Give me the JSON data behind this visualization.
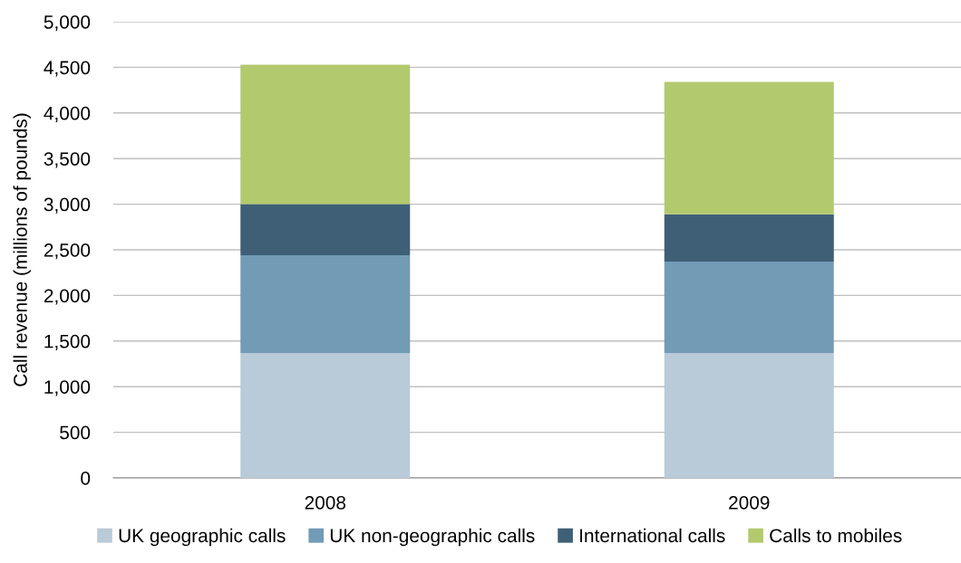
{
  "chart_data": {
    "type": "bar",
    "stacked": true,
    "ylabel": "Call revenue (millions of pounds)",
    "categories": [
      "2008",
      "2009"
    ],
    "series": [
      {
        "name": "UK geographic calls",
        "color": "#b9cad8",
        "values": [
          1370,
          1370
        ]
      },
      {
        "name": "UK non-geographic calls",
        "color": "#729bb6",
        "values": [
          1070,
          1000
        ]
      },
      {
        "name": "International calls",
        "color": "#3f5f76",
        "values": [
          560,
          520
        ]
      },
      {
        "name": "Calls to mobiles",
        "color": "#b3c96e",
        "values": [
          1530,
          1450
        ]
      }
    ],
    "ylim": [
      0,
      5000
    ],
    "yticks": [
      {
        "value": 0,
        "label": "0"
      },
      {
        "value": 500,
        "label": "500"
      },
      {
        "value": 1000,
        "label": "1,000"
      },
      {
        "value": 1500,
        "label": "1,500"
      },
      {
        "value": 2000,
        "label": "2,000"
      },
      {
        "value": 2500,
        "label": "2,500"
      },
      {
        "value": 3000,
        "label": "3,000"
      },
      {
        "value": 3500,
        "label": "3,500"
      },
      {
        "value": 4000,
        "label": "4,000"
      },
      {
        "value": 4500,
        "label": "4,500"
      },
      {
        "value": 5000,
        "label": "5,000"
      }
    ],
    "grid": "y",
    "legend": "bottom"
  }
}
